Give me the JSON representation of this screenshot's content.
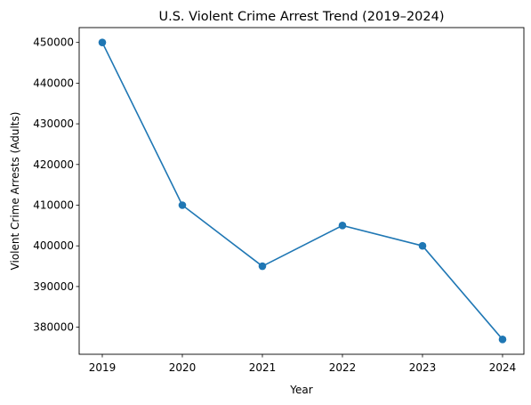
{
  "chart_data": {
    "type": "line",
    "title": "U.S. Violent Crime Arrest Trend (2019–2024)",
    "xlabel": "Year",
    "ylabel": "Violent Crime Arrests (Adults)",
    "x": [
      "2019",
      "2020",
      "2021",
      "2022",
      "2023",
      "2024"
    ],
    "series": [
      {
        "values": [
          450000,
          410000,
          395000,
          405000,
          400000,
          377000
        ],
        "color": "#1f77b4",
        "marker": "circle"
      }
    ],
    "yticks": [
      380000,
      390000,
      400000,
      410000,
      420000,
      430000,
      440000,
      450000
    ],
    "ylim": [
      373350,
      453650
    ],
    "grid": false,
    "legend": "none"
  }
}
